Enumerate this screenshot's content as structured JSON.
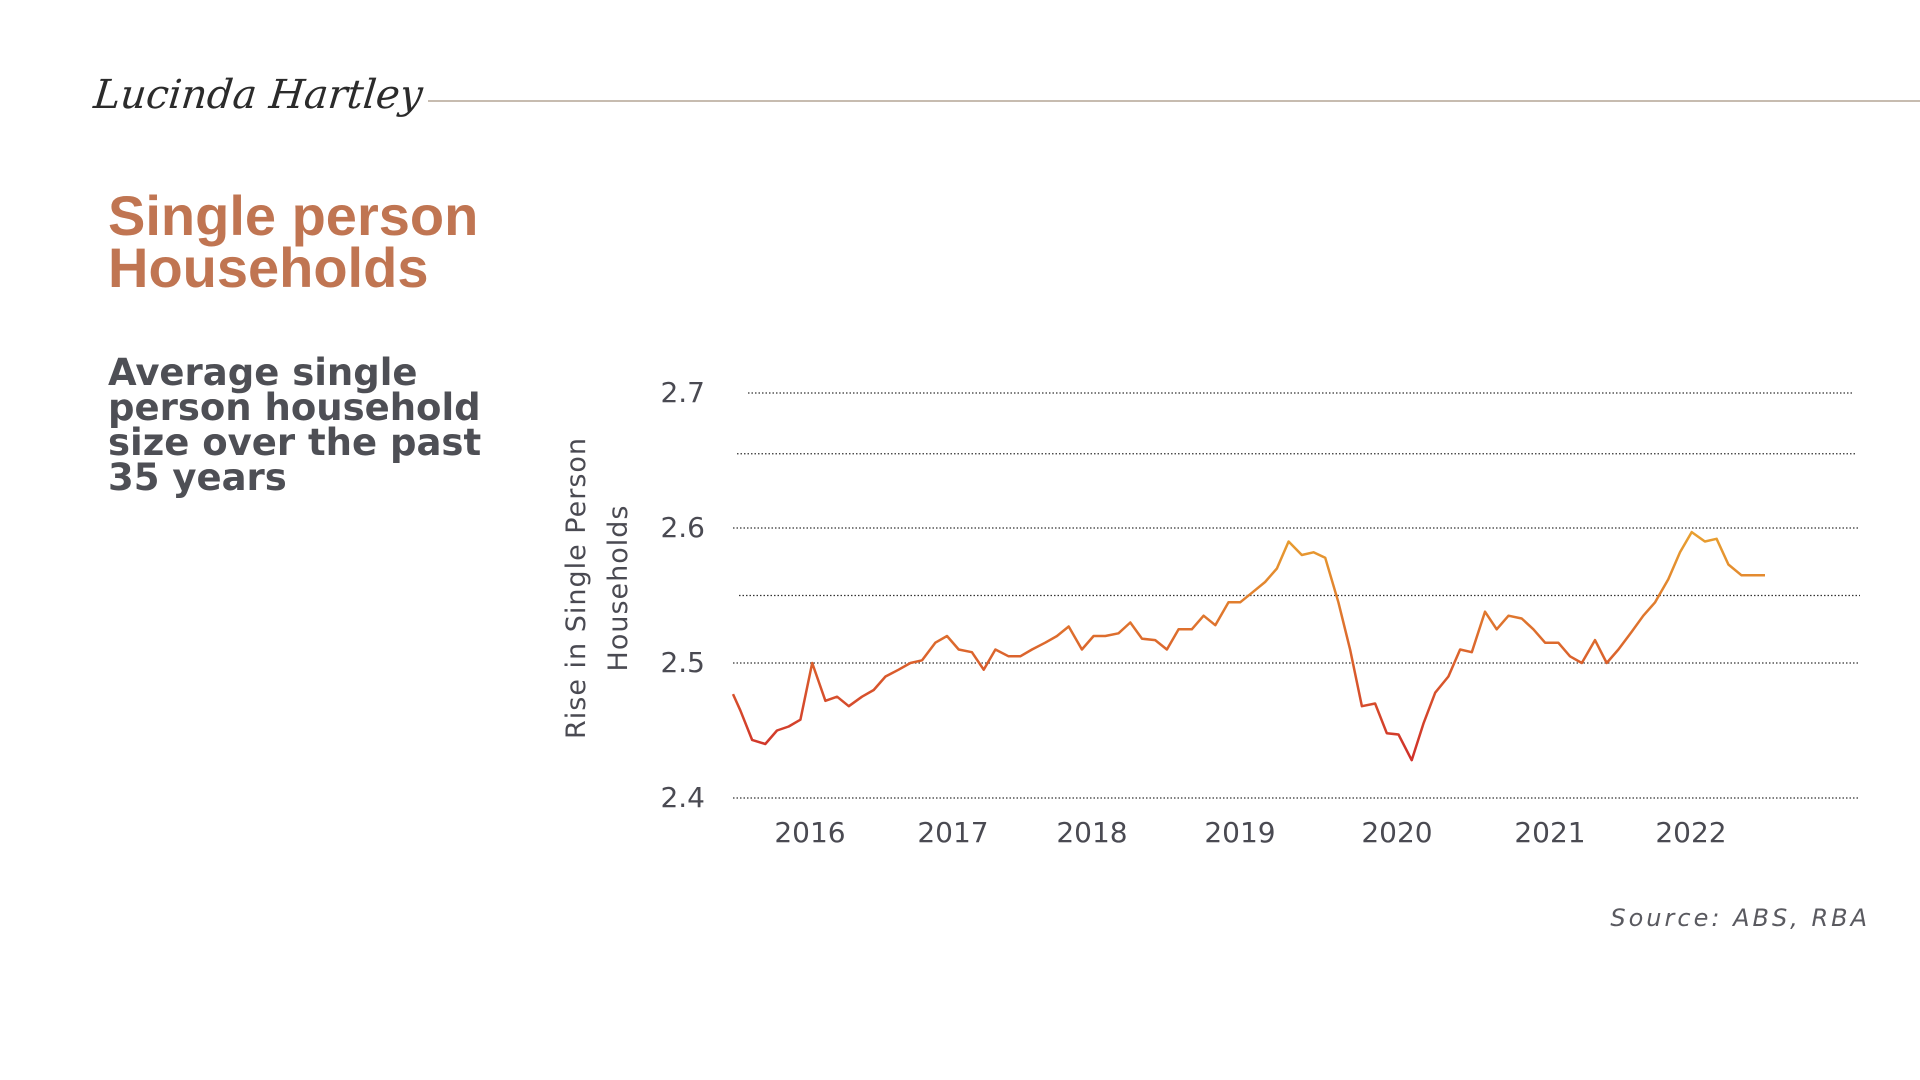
{
  "brand": {
    "name": "Lucinda Hartley"
  },
  "header": {
    "title_line1": "Single person",
    "title_line2": "Households",
    "subtitle": "Average single person household size over the past 35 years"
  },
  "source": "Source: ABS, RBA",
  "colors": {
    "title": "#c07552",
    "subtitle": "#4e4f55",
    "line_start": "#e8a030",
    "line_end": "#d0302a",
    "grid": "#333333"
  },
  "chart_data": {
    "type": "line",
    "title": "",
    "xlabel": "",
    "ylabel": "Rise in Single Person Households",
    "ylim": [
      2.4,
      2.7
    ],
    "yticks": [
      "2.4",
      "2.5",
      "2.6",
      "2.7"
    ],
    "xticks": [
      "2016",
      "2017",
      "2018",
      "2019",
      "2020",
      "2021",
      "2022"
    ],
    "grid": "horizontal dotted",
    "series": [
      {
        "x": [
          2015.5,
          2015.55,
          2015.63,
          2015.72,
          2015.8,
          2015.88,
          2015.96,
          2016.04,
          2016.13,
          2016.21,
          2016.29,
          2016.38,
          2016.46,
          2016.54,
          2016.63,
          2016.71,
          2016.79,
          2016.88,
          2016.96,
          2017.04,
          2017.13,
          2017.21,
          2017.29,
          2017.38,
          2017.46,
          2017.54,
          2017.63,
          2017.71,
          2017.79,
          2017.88,
          2017.96,
          2018.04,
          2018.13,
          2018.21,
          2018.29,
          2018.38,
          2018.46,
          2018.54,
          2018.63,
          2018.71,
          2018.79,
          2018.88,
          2018.96,
          2019.04,
          2019.13,
          2019.21,
          2019.29,
          2019.38,
          2019.46,
          2019.54,
          2019.63,
          2019.71,
          2019.79,
          2019.88,
          2019.96,
          2020.04,
          2020.13,
          2020.21,
          2020.29,
          2020.38,
          2020.46,
          2020.54,
          2020.63,
          2020.71,
          2020.79,
          2020.88,
          2020.96,
          2021.04,
          2021.13,
          2021.21,
          2021.29,
          2021.38,
          2021.46,
          2021.54,
          2021.63,
          2021.71,
          2021.79,
          2021.88,
          2021.96,
          2022.04,
          2022.13,
          2022.21,
          2022.29,
          2022.38,
          2022.46,
          2022.54
        ],
        "values": [
          2.477,
          2.465,
          2.443,
          2.44,
          2.45,
          2.453,
          2.458,
          2.5,
          2.472,
          2.475,
          2.468,
          2.475,
          2.48,
          2.49,
          2.495,
          2.5,
          2.502,
          2.515,
          2.52,
          2.51,
          2.508,
          2.495,
          2.51,
          2.505,
          2.505,
          2.51,
          2.515,
          2.52,
          2.527,
          2.51,
          2.52,
          2.52,
          2.522,
          2.53,
          2.518,
          2.517,
          2.51,
          2.525,
          2.525,
          2.535,
          2.528,
          2.545,
          2.545,
          2.552,
          2.56,
          2.57,
          2.59,
          2.58,
          2.582,
          2.578,
          2.545,
          2.51,
          2.468,
          2.47,
          2.448,
          2.447,
          2.428,
          2.455,
          2.478,
          2.49,
          2.51,
          2.508,
          2.538,
          2.525,
          2.535,
          2.533,
          2.525,
          2.515,
          2.515,
          2.505,
          2.5,
          2.517,
          2.5,
          2.51,
          2.523,
          2.535,
          2.545,
          2.562,
          2.582,
          2.597,
          2.59,
          2.592,
          2.573,
          2.565,
          2.565,
          2.565
        ]
      }
    ]
  }
}
